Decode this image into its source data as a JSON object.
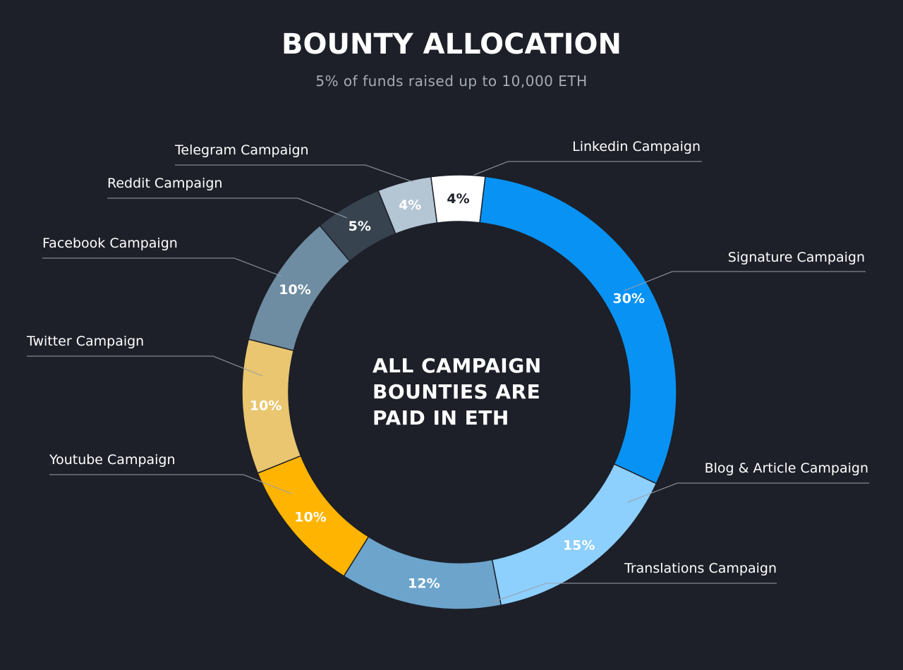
{
  "chart_data": {
    "type": "pie",
    "variant": "donut",
    "title": "BOUNTY ALLOCATION",
    "subtitle": "5% of funds raised up to 10,000 ETH",
    "center_text": [
      "ALL CAMPAIGN",
      "BOUNTIES ARE",
      "PAID IN ETH"
    ],
    "slices": [
      {
        "label": "Linkedin Campaign",
        "value": 4,
        "value_label": "4%",
        "color": "#ffffff",
        "text_color": "#1d2028"
      },
      {
        "label": "Signature Campaign",
        "value": 30,
        "value_label": "30%",
        "color": "#0892f4",
        "text_color": "#ffffff"
      },
      {
        "label": "Blog & Article Campaign",
        "value": 15,
        "value_label": "15%",
        "color": "#8dcffd",
        "text_color": "#ffffff"
      },
      {
        "label": "Translations Campaign",
        "value": 12,
        "value_label": "12%",
        "color": "#6ca4cc",
        "text_color": "#ffffff"
      },
      {
        "label": "Youtube Campaign",
        "value": 10,
        "value_label": "10%",
        "color": "#feb400",
        "text_color": "#ffffff"
      },
      {
        "label": "Twitter Campaign",
        "value": 10,
        "value_label": "10%",
        "color": "#e9c66f",
        "text_color": "#ffffff"
      },
      {
        "label": "Facebook Campaign",
        "value": 10,
        "value_label": "10%",
        "color": "#6e8ca2",
        "text_color": "#ffffff"
      },
      {
        "label": "Reddit Campaign",
        "value": 5,
        "value_label": "5%",
        "color": "#37434f",
        "text_color": "#ffffff"
      },
      {
        "label": "Telegram Campaign",
        "value": 4,
        "value_label": "4%",
        "color": "#b4c6d4",
        "text_color": "#ffffff"
      }
    ],
    "legend": "none"
  }
}
